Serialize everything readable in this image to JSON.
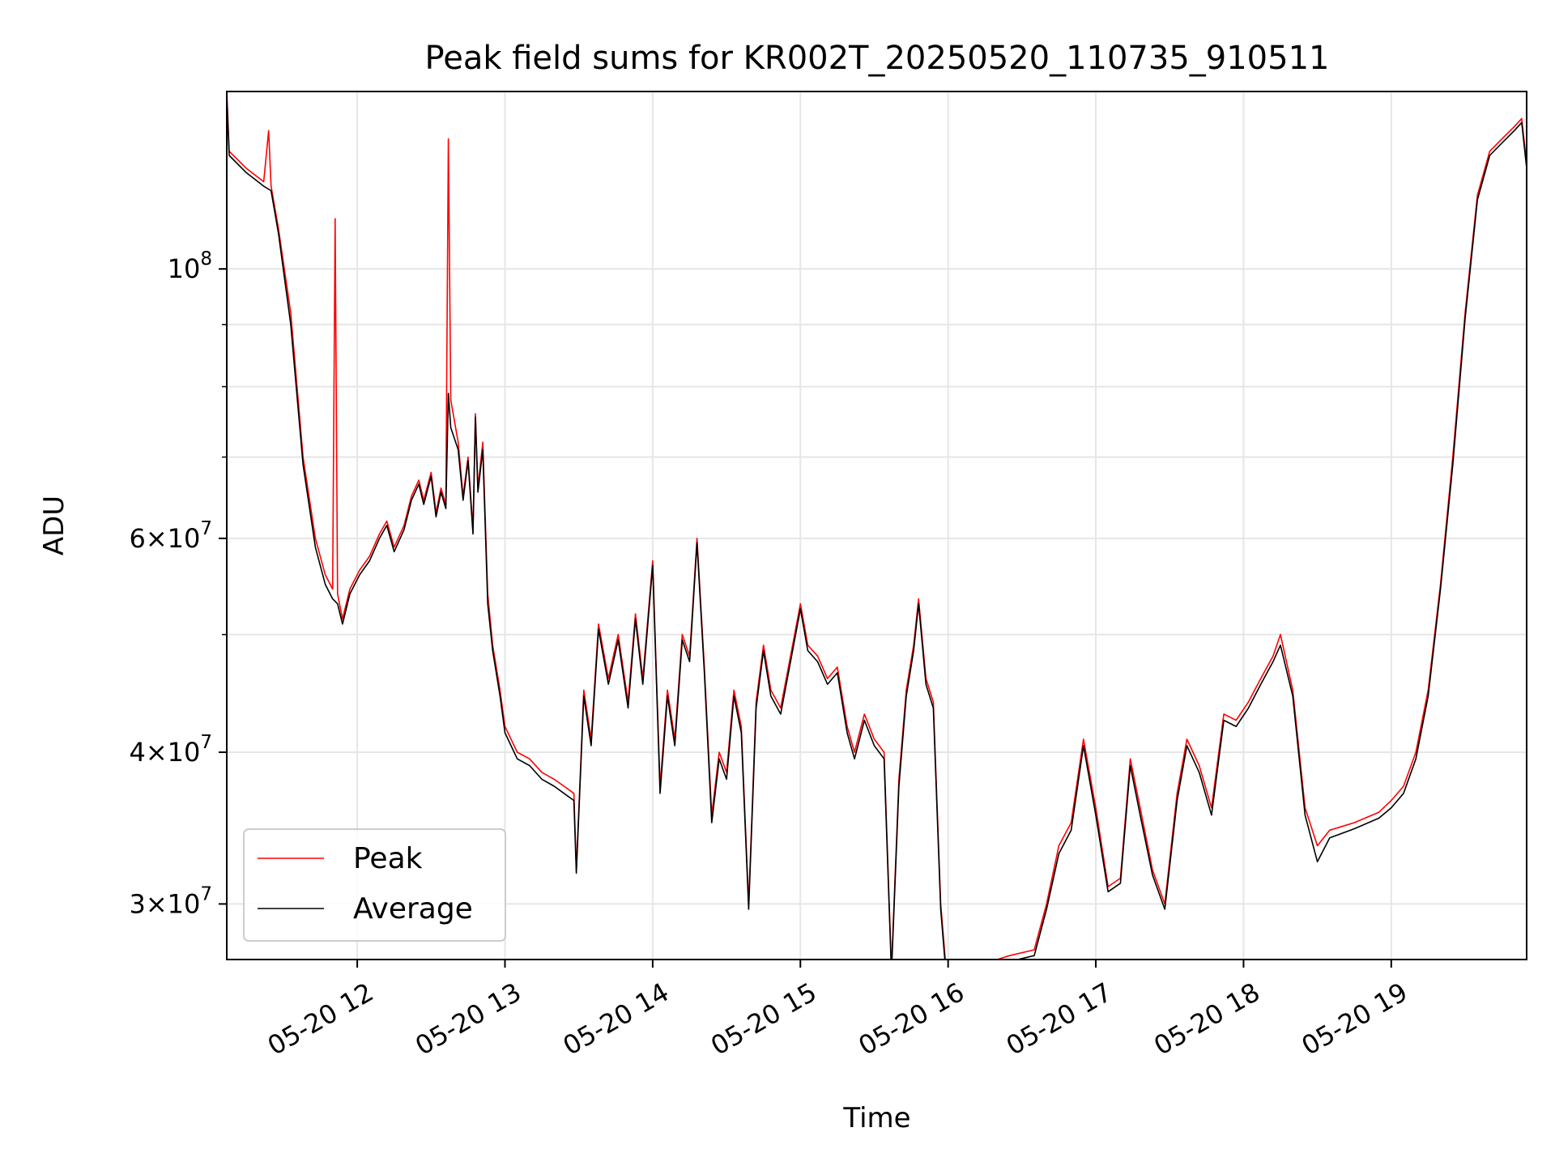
{
  "chart_data": {
    "type": "line",
    "title": "Peak field sums for KR002T_20250520_110735_910511",
    "xlabel": "Time",
    "ylabel": "ADU",
    "yscale": "log",
    "grid": true,
    "legend_position": "lower-left",
    "xlim": [
      "2025-05-20 11:07",
      "2025-05-20 19:55"
    ],
    "ylim": [
      27000000,
      140000000
    ],
    "x_ticks": [
      "05-20 12",
      "05-20 13",
      "05-20 14",
      "05-20 15",
      "05-20 16",
      "05-20 17",
      "05-20 18",
      "05-20 19"
    ],
    "y_ticks": [
      {
        "value": 30000000,
        "mantissa": "3",
        "exp": "7"
      },
      {
        "value": 40000000,
        "mantissa": "4",
        "exp": "7"
      },
      {
        "value": 60000000,
        "mantissa": "6",
        "exp": "7"
      },
      {
        "value": 100000000,
        "mantissa": "10",
        "exp": "8"
      }
    ],
    "series": [
      {
        "name": "Peak",
        "color": "#ff0000",
        "points": [
          [
            "11:07",
            140000000
          ],
          [
            "11:08",
            125000000
          ],
          [
            "11:15",
            121000000
          ],
          [
            "11:22",
            118000000
          ],
          [
            "11:24",
            130000000
          ],
          [
            "11:25",
            117000000
          ],
          [
            "11:28",
            108000000
          ],
          [
            "11:33",
            92000000
          ],
          [
            "11:38",
            70000000
          ],
          [
            "11:43",
            60000000
          ],
          [
            "11:47",
            56000000
          ],
          [
            "11:50",
            54500000
          ],
          [
            "11:51",
            110000000
          ],
          [
            "11:52",
            54000000
          ],
          [
            "11:54",
            51500000
          ],
          [
            "11:57",
            54500000
          ],
          [
            "12:01",
            56500000
          ],
          [
            "12:05",
            58000000
          ],
          [
            "12:09",
            60500000
          ],
          [
            "12:12",
            62000000
          ],
          [
            "12:15",
            59000000
          ],
          [
            "12:19",
            61500000
          ],
          [
            "12:22",
            65000000
          ],
          [
            "12:25",
            67000000
          ],
          [
            "12:27",
            64500000
          ],
          [
            "12:30",
            68000000
          ],
          [
            "12:32",
            63000000
          ],
          [
            "12:34",
            66000000
          ],
          [
            "12:36",
            64000000
          ],
          [
            "12:37",
            128000000
          ],
          [
            "12:38",
            78000000
          ],
          [
            "12:41",
            72000000
          ],
          [
            "12:43",
            65000000
          ],
          [
            "12:45",
            70000000
          ],
          [
            "12:47",
            61000000
          ],
          [
            "12:48",
            76000000
          ],
          [
            "12:49",
            66000000
          ],
          [
            "12:51",
            72000000
          ],
          [
            "12:53",
            54000000
          ],
          [
            "12:55",
            49000000
          ],
          [
            "12:58",
            45000000
          ],
          [
            "13:00",
            42000000
          ],
          [
            "13:05",
            40000000
          ],
          [
            "13:10",
            39500000
          ],
          [
            "13:15",
            38500000
          ],
          [
            "13:20",
            38000000
          ],
          [
            "13:24",
            37500000
          ],
          [
            "13:28",
            37000000
          ],
          [
            "13:29",
            32000000
          ],
          [
            "13:32",
            45000000
          ],
          [
            "13:35",
            41000000
          ],
          [
            "13:38",
            51000000
          ],
          [
            "13:42",
            46000000
          ],
          [
            "13:46",
            50000000
          ],
          [
            "13:50",
            44000000
          ],
          [
            "13:53",
            52000000
          ],
          [
            "13:56",
            46000000
          ],
          [
            "14:00",
            57500000
          ],
          [
            "14:03",
            37500000
          ],
          [
            "14:06",
            45000000
          ],
          [
            "14:09",
            41000000
          ],
          [
            "14:12",
            50000000
          ],
          [
            "14:15",
            48000000
          ],
          [
            "14:18",
            60000000
          ],
          [
            "14:21",
            47000000
          ],
          [
            "14:24",
            35500000
          ],
          [
            "14:27",
            40000000
          ],
          [
            "14:30",
            38500000
          ],
          [
            "14:33",
            45000000
          ],
          [
            "14:36",
            42000000
          ],
          [
            "14:39",
            30000000
          ],
          [
            "14:42",
            44000000
          ],
          [
            "14:45",
            49000000
          ],
          [
            "14:48",
            45000000
          ],
          [
            "14:52",
            43500000
          ],
          [
            "14:56",
            48000000
          ],
          [
            "15:00",
            53000000
          ],
          [
            "15:03",
            49000000
          ],
          [
            "15:07",
            48000000
          ],
          [
            "15:11",
            46000000
          ],
          [
            "15:15",
            47000000
          ],
          [
            "15:19",
            42000000
          ],
          [
            "15:22",
            40000000
          ],
          [
            "15:26",
            43000000
          ],
          [
            "15:30",
            41000000
          ],
          [
            "15:34",
            40000000
          ],
          [
            "15:37",
            26500000
          ],
          [
            "15:40",
            38000000
          ],
          [
            "15:43",
            45000000
          ],
          [
            "15:46",
            49000000
          ],
          [
            "15:48",
            53500000
          ],
          [
            "15:51",
            46000000
          ],
          [
            "15:54",
            44000000
          ],
          [
            "15:57",
            30000000
          ],
          [
            "15:59",
            26800000
          ],
          [
            "16:05",
            27000000
          ],
          [
            "16:15",
            26800000
          ],
          [
            "16:25",
            27200000
          ],
          [
            "16:35",
            27500000
          ],
          [
            "16:40",
            30000000
          ],
          [
            "16:45",
            33500000
          ],
          [
            "16:50",
            35000000
          ],
          [
            "16:55",
            41000000
          ],
          [
            "17:00",
            36000000
          ],
          [
            "17:05",
            31000000
          ],
          [
            "17:10",
            31500000
          ],
          [
            "17:14",
            39500000
          ],
          [
            "17:18",
            36000000
          ],
          [
            "17:23",
            32000000
          ],
          [
            "17:28",
            30000000
          ],
          [
            "17:33",
            37000000
          ],
          [
            "17:37",
            41000000
          ],
          [
            "17:42",
            39000000
          ],
          [
            "17:47",
            36000000
          ],
          [
            "17:52",
            43000000
          ],
          [
            "17:57",
            42500000
          ],
          [
            "18:02",
            44000000
          ],
          [
            "18:07",
            46000000
          ],
          [
            "18:12",
            48000000
          ],
          [
            "18:15",
            50000000
          ],
          [
            "18:20",
            45000000
          ],
          [
            "18:25",
            36000000
          ],
          [
            "18:30",
            33500000
          ],
          [
            "18:35",
            34500000
          ],
          [
            "18:45",
            35000000
          ],
          [
            "18:55",
            35700000
          ],
          [
            "19:00",
            36500000
          ],
          [
            "19:05",
            37500000
          ],
          [
            "19:10",
            40000000
          ],
          [
            "19:15",
            45000000
          ],
          [
            "19:20",
            55000000
          ],
          [
            "19:25",
            70000000
          ],
          [
            "19:30",
            92000000
          ],
          [
            "19:35",
            115000000
          ],
          [
            "19:40",
            125000000
          ],
          [
            "19:45",
            128000000
          ],
          [
            "19:50",
            131000000
          ],
          [
            "19:53",
            133000000
          ],
          [
            "19:55",
            122000000
          ]
        ]
      },
      {
        "name": "Average",
        "color": "#000000",
        "points": [
          [
            "11:07",
            139000000
          ],
          [
            "11:08",
            124000000
          ],
          [
            "11:15",
            120000000
          ],
          [
            "11:22",
            117000000
          ],
          [
            "11:25",
            116000000
          ],
          [
            "11:28",
            107000000
          ],
          [
            "11:33",
            90000000
          ],
          [
            "11:38",
            69000000
          ],
          [
            "11:43",
            59000000
          ],
          [
            "11:47",
            55000000
          ],
          [
            "11:50",
            53500000
          ],
          [
            "11:52",
            53000000
          ],
          [
            "11:54",
            51000000
          ],
          [
            "11:57",
            54000000
          ],
          [
            "12:01",
            56000000
          ],
          [
            "12:05",
            57500000
          ],
          [
            "12:09",
            60000000
          ],
          [
            "12:12",
            61500000
          ],
          [
            "12:15",
            58500000
          ],
          [
            "12:19",
            61000000
          ],
          [
            "12:22",
            64500000
          ],
          [
            "12:25",
            66500000
          ],
          [
            "12:27",
            64000000
          ],
          [
            "12:30",
            67500000
          ],
          [
            "12:32",
            62500000
          ],
          [
            "12:34",
            65500000
          ],
          [
            "12:36",
            63500000
          ],
          [
            "12:37",
            79000000
          ],
          [
            "12:38",
            74000000
          ],
          [
            "12:41",
            71000000
          ],
          [
            "12:43",
            64500000
          ],
          [
            "12:45",
            69500000
          ],
          [
            "12:47",
            60500000
          ],
          [
            "12:48",
            75500000
          ],
          [
            "12:49",
            65500000
          ],
          [
            "12:51",
            71000000
          ],
          [
            "12:53",
            53000000
          ],
          [
            "12:55",
            48500000
          ],
          [
            "12:58",
            44500000
          ],
          [
            "13:00",
            41500000
          ],
          [
            "13:05",
            39500000
          ],
          [
            "13:10",
            39000000
          ],
          [
            "13:15",
            38000000
          ],
          [
            "13:20",
            37500000
          ],
          [
            "13:24",
            37000000
          ],
          [
            "13:28",
            36500000
          ],
          [
            "13:29",
            31800000
          ],
          [
            "13:32",
            44500000
          ],
          [
            "13:35",
            40500000
          ],
          [
            "13:38",
            50500000
          ],
          [
            "13:42",
            45500000
          ],
          [
            "13:46",
            49500000
          ],
          [
            "13:50",
            43500000
          ],
          [
            "13:53",
            51500000
          ],
          [
            "13:56",
            45500000
          ],
          [
            "14:00",
            57000000
          ],
          [
            "14:03",
            37000000
          ],
          [
            "14:06",
            44500000
          ],
          [
            "14:09",
            40500000
          ],
          [
            "14:12",
            49500000
          ],
          [
            "14:15",
            47500000
          ],
          [
            "14:18",
            59500000
          ],
          [
            "14:21",
            46500000
          ],
          [
            "14:24",
            35000000
          ],
          [
            "14:27",
            39500000
          ],
          [
            "14:30",
            38000000
          ],
          [
            "14:33",
            44500000
          ],
          [
            "14:36",
            41500000
          ],
          [
            "14:39",
            29700000
          ],
          [
            "14:42",
            43500000
          ],
          [
            "14:45",
            48500000
          ],
          [
            "14:48",
            44500000
          ],
          [
            "14:52",
            43000000
          ],
          [
            "14:56",
            47500000
          ],
          [
            "15:00",
            52500000
          ],
          [
            "15:03",
            48500000
          ],
          [
            "15:07",
            47500000
          ],
          [
            "15:11",
            45500000
          ],
          [
            "15:15",
            46500000
          ],
          [
            "15:19",
            41500000
          ],
          [
            "15:22",
            39500000
          ],
          [
            "15:26",
            42500000
          ],
          [
            "15:30",
            40500000
          ],
          [
            "15:34",
            39500000
          ],
          [
            "15:37",
            26300000
          ],
          [
            "15:40",
            37500000
          ],
          [
            "15:43",
            44500000
          ],
          [
            "15:46",
            48500000
          ],
          [
            "15:48",
            53000000
          ],
          [
            "15:51",
            45500000
          ],
          [
            "15:54",
            43500000
          ],
          [
            "15:57",
            29700000
          ],
          [
            "15:59",
            26500000
          ],
          [
            "16:05",
            26700000
          ],
          [
            "16:15",
            26500000
          ],
          [
            "16:25",
            26900000
          ],
          [
            "16:35",
            27200000
          ],
          [
            "16:40",
            29700000
          ],
          [
            "16:45",
            33000000
          ],
          [
            "16:50",
            34500000
          ],
          [
            "16:55",
            40500000
          ],
          [
            "17:00",
            35500000
          ],
          [
            "17:05",
            30700000
          ],
          [
            "17:10",
            31200000
          ],
          [
            "17:14",
            39000000
          ],
          [
            "17:18",
            35500000
          ],
          [
            "17:23",
            31700000
          ],
          [
            "17:28",
            29700000
          ],
          [
            "17:33",
            36500000
          ],
          [
            "17:37",
            40500000
          ],
          [
            "17:42",
            38500000
          ],
          [
            "17:47",
            35500000
          ],
          [
            "17:52",
            42500000
          ],
          [
            "17:57",
            42000000
          ],
          [
            "18:02",
            43500000
          ],
          [
            "18:07",
            45500000
          ],
          [
            "18:12",
            47500000
          ],
          [
            "18:15",
            49000000
          ],
          [
            "18:20",
            44500000
          ],
          [
            "18:25",
            35500000
          ],
          [
            "18:30",
            32500000
          ],
          [
            "18:35",
            34000000
          ],
          [
            "18:45",
            34600000
          ],
          [
            "18:55",
            35300000
          ],
          [
            "19:00",
            36000000
          ],
          [
            "19:05",
            37000000
          ],
          [
            "19:10",
            39500000
          ],
          [
            "19:15",
            44500000
          ],
          [
            "19:20",
            54500000
          ],
          [
            "19:25",
            69000000
          ],
          [
            "19:30",
            91000000
          ],
          [
            "19:35",
            114000000
          ],
          [
            "19:40",
            124000000
          ],
          [
            "19:45",
            127000000
          ],
          [
            "19:50",
            130000000
          ],
          [
            "19:53",
            132000000
          ],
          [
            "19:55",
            121000000
          ]
        ]
      }
    ]
  }
}
